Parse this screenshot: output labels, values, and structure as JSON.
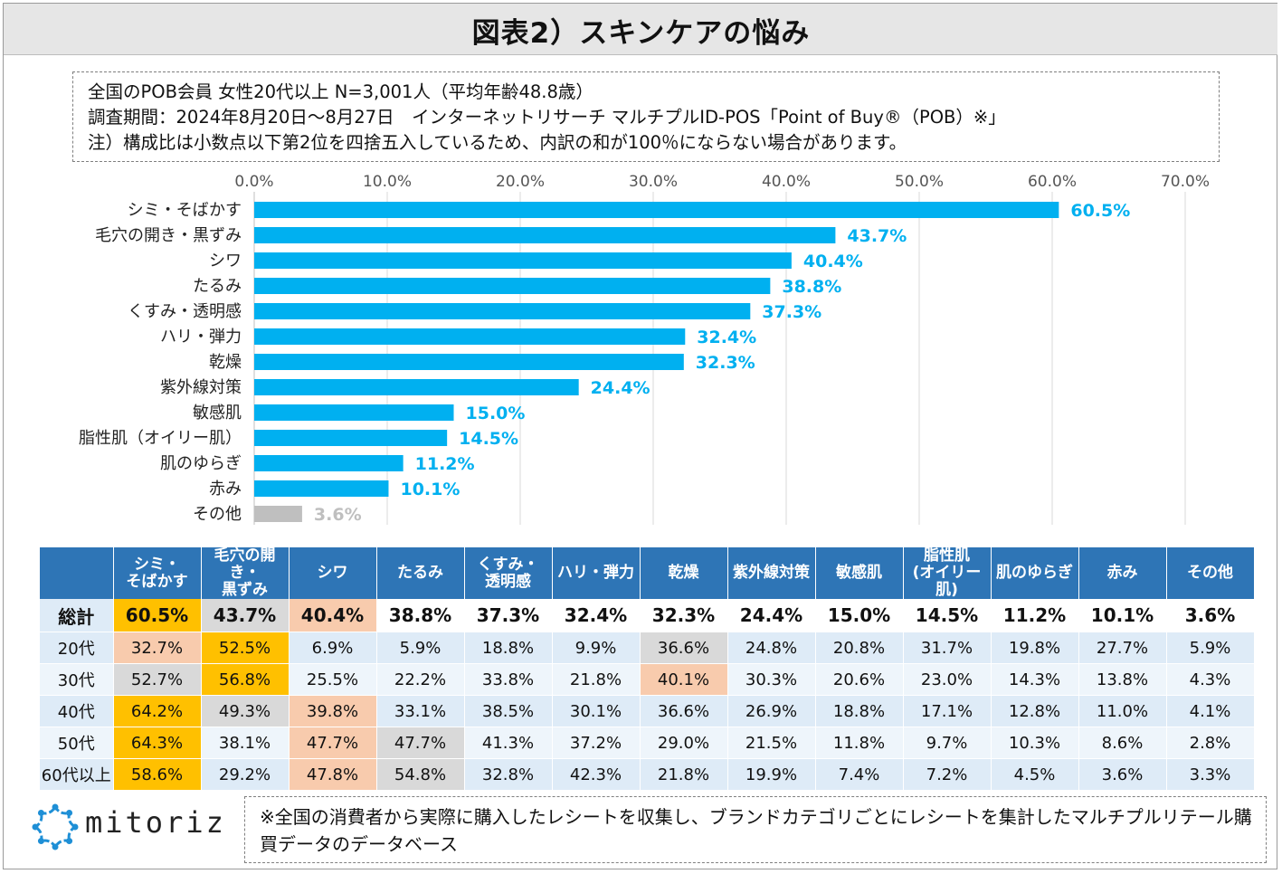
{
  "title": "図表2）スキンケアの悩み",
  "notes": [
    "全国のPOB会員 女性20代以上 N=3,001人（平均年齢48.8歳）",
    "調査期間：2024年8月20日～8月27日　インターネットリサーチ マルチプルID-POS「Point of Buy®（POB）※」",
    "注）構成比は小数点以下第2位を四捨五入しているため、内訳の和が100％にならない場合があります。"
  ],
  "chart_data": {
    "type": "bar",
    "orientation": "horizontal",
    "categories": [
      "シミ・そばかす",
      "毛穴の開き・黒ずみ",
      "シワ",
      "たるみ",
      "くすみ・透明感",
      "ハリ・弾力",
      "乾燥",
      "紫外線対策",
      "敏感肌",
      "脂性肌（オイリー肌）",
      "肌のゆらぎ",
      "赤み",
      "その他"
    ],
    "values": [
      60.5,
      43.7,
      40.4,
      38.8,
      37.3,
      32.4,
      32.3,
      24.4,
      15.0,
      14.5,
      11.2,
      10.1,
      3.6
    ],
    "value_labels": [
      "60.5%",
      "43.7%",
      "40.4%",
      "38.8%",
      "37.3%",
      "32.4%",
      "32.3%",
      "24.4%",
      "15.0%",
      "14.5%",
      "11.2%",
      "10.1%",
      "3.6%"
    ],
    "xlim": [
      0,
      70
    ],
    "x_ticks": [
      "0.0%",
      "10.0%",
      "20.0%",
      "30.0%",
      "40.0%",
      "50.0%",
      "60.0%",
      "70.0%"
    ],
    "grid": true,
    "axis_position": "top",
    "colors": {
      "bar": "#00b0f0",
      "other_bar": "#bfbfbf",
      "label": "#00b0f0",
      "other_label": "#bfbfbf"
    }
  },
  "table": {
    "headers": [
      [
        "シミ・",
        "そばかす"
      ],
      [
        "毛穴の開き・",
        "黒ずみ"
      ],
      [
        "シワ"
      ],
      [
        "たるみ"
      ],
      [
        "くすみ・",
        "透明感"
      ],
      [
        "ハリ・弾力"
      ],
      [
        "乾燥"
      ],
      [
        "紫外線対策"
      ],
      [
        "敏感肌"
      ],
      [
        "脂性肌",
        "(オイリー肌)"
      ],
      [
        "肌のゆらぎ"
      ],
      [
        "赤み"
      ],
      [
        "その他"
      ]
    ],
    "rows": [
      {
        "label": "総計",
        "values": [
          "60.5%",
          "43.7%",
          "40.4%",
          "38.8%",
          "37.3%",
          "32.4%",
          "32.3%",
          "24.4%",
          "15.0%",
          "14.5%",
          "11.2%",
          "10.1%",
          "3.6%"
        ],
        "highlights": {
          "0": "yellow",
          "1": "gray",
          "2": "peach"
        }
      },
      {
        "label": "20代",
        "values": [
          "32.7%",
          "52.5%",
          "6.9%",
          "5.9%",
          "18.8%",
          "9.9%",
          "36.6%",
          "24.8%",
          "20.8%",
          "31.7%",
          "19.8%",
          "27.7%",
          "5.9%"
        ],
        "highlights": {
          "0": "peach",
          "1": "yellow",
          "6": "gray"
        }
      },
      {
        "label": "30代",
        "values": [
          "52.7%",
          "56.8%",
          "25.5%",
          "22.2%",
          "33.8%",
          "21.8%",
          "40.1%",
          "30.3%",
          "20.6%",
          "23.0%",
          "14.3%",
          "13.8%",
          "4.3%"
        ],
        "highlights": {
          "0": "gray",
          "1": "yellow",
          "6": "peach"
        }
      },
      {
        "label": "40代",
        "values": [
          "64.2%",
          "49.3%",
          "39.8%",
          "33.1%",
          "38.5%",
          "30.1%",
          "36.6%",
          "26.9%",
          "18.8%",
          "17.1%",
          "12.8%",
          "11.0%",
          "4.1%"
        ],
        "highlights": {
          "0": "yellow",
          "1": "gray",
          "2": "peach"
        }
      },
      {
        "label": "50代",
        "values": [
          "64.3%",
          "38.1%",
          "47.7%",
          "47.7%",
          "41.3%",
          "37.2%",
          "29.0%",
          "21.5%",
          "11.8%",
          "9.7%",
          "10.3%",
          "8.6%",
          "2.8%"
        ],
        "highlights": {
          "0": "yellow",
          "2": "peach",
          "3": "gray"
        }
      },
      {
        "label": "60代以上",
        "values": [
          "58.6%",
          "29.2%",
          "47.8%",
          "54.8%",
          "32.8%",
          "42.3%",
          "21.8%",
          "19.9%",
          "7.4%",
          "7.2%",
          "4.5%",
          "3.6%",
          "3.3%"
        ],
        "highlights": {
          "0": "yellow",
          "2": "peach",
          "3": "gray"
        }
      }
    ]
  },
  "logo": {
    "text": "mitoriz",
    "icon": "mitoriz-star-logo-icon",
    "color": "#1e8fd6"
  },
  "footnote": "※全国の消費者から実際に購入したレシートを収集し、ブランドカテゴリごとにレシートを集計したマルチプルリテール購買データのデータベース"
}
